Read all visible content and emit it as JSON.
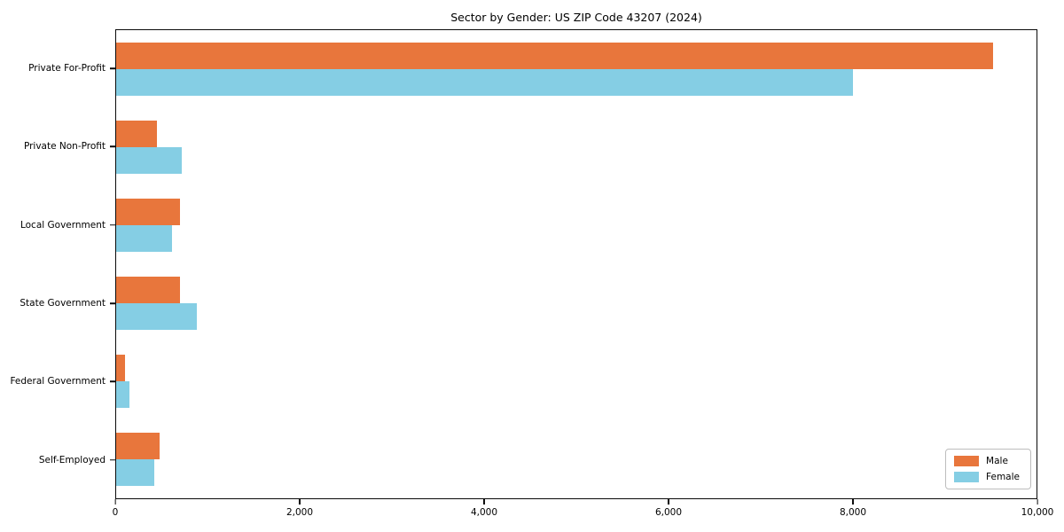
{
  "title": "Sector by Gender: US ZIP Code 43207 (2024)",
  "colors": {
    "male": "#E8763C",
    "female": "#85CEE4",
    "axis": "#0A0A0A",
    "background": "#FFFFFF",
    "legend_border": "#BDBDBD"
  },
  "legend": {
    "position": "lower right",
    "items": [
      {
        "label": "Male",
        "color": "#E8763C"
      },
      {
        "label": "Female",
        "color": "#85CEE4"
      }
    ]
  },
  "chart_data": {
    "type": "bar",
    "orientation": "horizontal",
    "title": "Sector by Gender: US ZIP Code 43207 (2024)",
    "categories": [
      "Private For-Profit",
      "Private Non-Profit",
      "Local Government",
      "State Government",
      "Federal Government",
      "Self-Employed"
    ],
    "series": [
      {
        "name": "Male",
        "color": "#E8763C",
        "values": [
          9530,
          440,
          690,
          690,
          100,
          470
        ]
      },
      {
        "name": "Female",
        "color": "#85CEE4",
        "values": [
          8010,
          710,
          610,
          880,
          140,
          410
        ]
      }
    ],
    "xlabel": "",
    "ylabel": "",
    "xlim": [
      0,
      10000
    ],
    "x_ticks": [
      0,
      2000,
      4000,
      6000,
      8000,
      10000
    ],
    "x_tick_labels": [
      "0",
      "2,000",
      "4,000",
      "6,000",
      "8,000",
      "10,000"
    ],
    "grid": false,
    "legend_position": "lower right"
  }
}
